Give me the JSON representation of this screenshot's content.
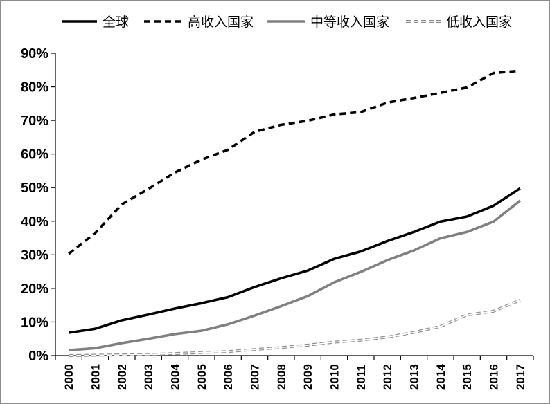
{
  "chart_data": {
    "type": "line",
    "title": "",
    "xlabel": "",
    "ylabel": "",
    "x": [
      "2000",
      "2001",
      "2002",
      "2003",
      "2004",
      "2005",
      "2006",
      "2007",
      "2008",
      "2009",
      "2010",
      "2011",
      "2012",
      "2013",
      "2014",
      "2015",
      "2016",
      "2017"
    ],
    "y_ticks": [
      "0%",
      "10%",
      "20%",
      "30%",
      "40%",
      "50%",
      "60%",
      "70%",
      "80%",
      "90%"
    ],
    "ylim": [
      0,
      90
    ],
    "grid": false,
    "legend_position": "top",
    "series": [
      {
        "name": "全球",
        "style": "solid",
        "color": "#000000",
        "values": [
          6.8,
          8.0,
          10.5,
          12.2,
          14.0,
          15.6,
          17.4,
          20.4,
          23.0,
          25.3,
          28.8,
          31.0,
          34.1,
          36.8,
          39.9,
          41.4,
          44.6,
          49.8
        ]
      },
      {
        "name": "高收入国家",
        "style": "dashed",
        "color": "#000000",
        "values": [
          30.3,
          36.5,
          45.0,
          49.6,
          54.5,
          58.3,
          61.3,
          66.6,
          68.7,
          69.9,
          71.8,
          72.5,
          75.3,
          76.7,
          78.2,
          79.8,
          84.1,
          84.8
        ]
      },
      {
        "name": "中等收入国家",
        "style": "solid",
        "color": "#808080",
        "values": [
          1.6,
          2.2,
          3.7,
          5.0,
          6.4,
          7.4,
          9.3,
          11.9,
          14.7,
          17.7,
          21.8,
          24.9,
          28.4,
          31.3,
          34.9,
          36.8,
          39.9,
          46.1
        ]
      },
      {
        "name": "低收入国家",
        "style": "dashed-light",
        "color": "#a6a6a6",
        "values": [
          0.0,
          0.1,
          0.2,
          0.3,
          0.6,
          0.9,
          1.2,
          1.8,
          2.4,
          3.1,
          4.0,
          4.6,
          5.5,
          6.9,
          8.7,
          12.1,
          13.2,
          16.5
        ]
      }
    ]
  }
}
